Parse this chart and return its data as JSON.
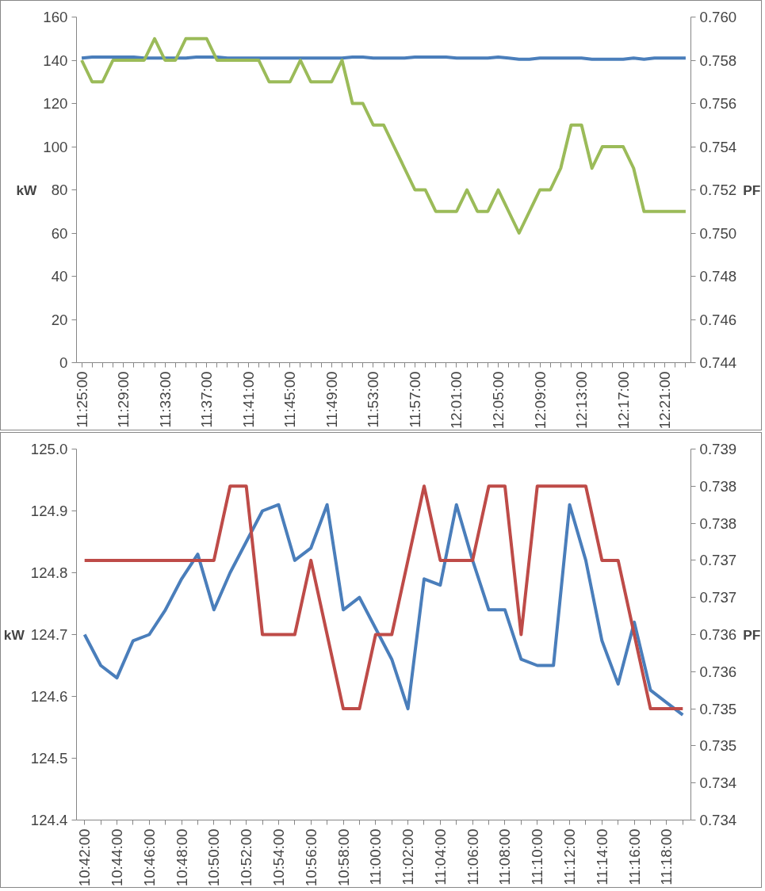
{
  "chart_data": [
    {
      "type": "line",
      "ylabel": "kW",
      "y2label": "PF",
      "categories": [
        "11:25:00",
        null,
        null,
        null,
        "11:29:00",
        null,
        null,
        null,
        "11:33:00",
        null,
        null,
        null,
        "11:37:00",
        null,
        null,
        null,
        "11:41:00",
        null,
        null,
        null,
        "11:45:00",
        null,
        null,
        null,
        "11:49:00",
        null,
        null,
        null,
        "11:53:00",
        null,
        null,
        null,
        "11:57:00",
        null,
        null,
        null,
        "12:01:00",
        null,
        null,
        null,
        "12:05:00",
        null,
        null,
        null,
        "12:09:00",
        null,
        null,
        null,
        "12:13:00",
        null,
        null,
        null,
        "12:17:00",
        null,
        null,
        null,
        "12:21:00",
        null,
        null
      ],
      "series": [
        {
          "color": "#4a7ebb",
          "values": [
            141,
            141.5,
            141.5,
            141.5,
            141.5,
            141.5,
            141,
            141,
            141,
            141,
            141,
            141.5,
            141.5,
            141.5,
            141,
            141,
            141,
            141,
            141,
            141,
            141,
            141,
            141,
            141,
            141,
            141,
            141.5,
            141.5,
            141,
            141,
            141,
            141,
            141.5,
            141.5,
            141.5,
            141.5,
            141,
            141,
            141,
            141,
            141.5,
            141,
            140.5,
            140.5,
            141,
            141,
            141,
            141,
            141,
            140.5,
            140.5,
            140.5,
            140.5,
            141,
            140.5,
            141,
            141,
            141,
            141
          ]
        },
        {
          "color": "#9bbb59",
          "axis": "y2",
          "values": [
            0.758,
            0.757,
            0.757,
            0.758,
            0.758,
            0.758,
            0.758,
            0.759,
            0.758,
            0.758,
            0.759,
            0.759,
            0.759,
            0.758,
            0.758,
            0.758,
            0.758,
            0.758,
            0.757,
            0.757,
            0.757,
            0.758,
            0.757,
            0.757,
            0.757,
            0.758,
            0.756,
            0.756,
            0.755,
            0.755,
            0.754,
            0.753,
            0.752,
            0.752,
            0.751,
            0.751,
            0.751,
            0.752,
            0.751,
            0.751,
            0.752,
            0.751,
            0.75,
            0.751,
            0.752,
            0.752,
            0.753,
            0.755,
            0.755,
            0.753,
            0.754,
            0.754,
            0.754,
            0.753,
            0.751,
            0.751,
            0.751,
            0.751,
            0.751
          ]
        }
      ],
      "ylim": [
        0,
        160
      ],
      "yticks": [
        0,
        20,
        40,
        60,
        80,
        100,
        120,
        140,
        160
      ],
      "y2lim": [
        0.744,
        0.76
      ],
      "y2ticks": [
        {
          "value": 0.744,
          "label": "0.744"
        },
        {
          "value": 0.746,
          "label": "0.746"
        },
        {
          "value": 0.748,
          "label": "0.748"
        },
        {
          "value": 0.75,
          "label": "0.750"
        },
        {
          "value": 0.752,
          "label": "0.752"
        },
        {
          "value": 0.754,
          "label": "0.754"
        },
        {
          "value": 0.756,
          "label": "0.756"
        },
        {
          "value": 0.758,
          "label": "0.758"
        },
        {
          "value": 0.76,
          "label": "0.760"
        }
      ]
    },
    {
      "type": "line",
      "ylabel": "kW",
      "y2label": "PF",
      "categories": [
        "10:42:00",
        null,
        "10:44:00",
        null,
        "10:46:00",
        null,
        "10:48:00",
        null,
        "10:50:00",
        null,
        "10:52:00",
        null,
        "10:54:00",
        null,
        "10:56:00",
        null,
        "10:58:00",
        null,
        "11:00:00",
        null,
        "11:02:00",
        null,
        "11:04:00",
        null,
        "11:06:00",
        null,
        "11:08:00",
        null,
        "11:10:00",
        null,
        "11:12:00",
        null,
        "11:14:00",
        null,
        "11:16:00",
        null,
        "11:18:00",
        null
      ],
      "series": [
        {
          "color": "#4a7ebb",
          "values": [
            124.7,
            124.65,
            124.63,
            124.69,
            124.7,
            124.74,
            124.79,
            124.83,
            124.74,
            124.8,
            124.85,
            124.9,
            124.91,
            124.82,
            124.84,
            124.91,
            124.74,
            124.76,
            124.71,
            124.66,
            124.58,
            124.79,
            124.78,
            124.91,
            124.82,
            124.74,
            124.74,
            124.66,
            124.65,
            124.65,
            124.91,
            124.82,
            124.69,
            124.62,
            124.72,
            124.61,
            124.59,
            124.57
          ]
        },
        {
          "color": "#be4b48",
          "axis": "y2",
          "values": [
            0.7375,
            0.7375,
            0.7375,
            0.7375,
            0.7375,
            0.7375,
            0.7375,
            0.7375,
            0.7375,
            0.7385,
            0.7385,
            0.7365,
            0.7365,
            0.7365,
            0.7375,
            0.7365,
            0.7355,
            0.7355,
            0.7365,
            0.7365,
            0.7375,
            0.7385,
            0.7375,
            0.7375,
            0.7375,
            0.7385,
            0.7385,
            0.7365,
            0.7385,
            0.7385,
            0.7385,
            0.7385,
            0.7375,
            0.7375,
            0.7365,
            0.7355,
            0.7355,
            0.7355
          ]
        }
      ],
      "ylim": [
        124.4,
        125.0
      ],
      "yticks": [
        {
          "value": 124.4,
          "label": "124.4"
        },
        {
          "value": 124.5,
          "label": "124.5"
        },
        {
          "value": 124.6,
          "label": "124.6"
        },
        {
          "value": 124.7,
          "label": "124.7"
        },
        {
          "value": 124.8,
          "label": "124.8"
        },
        {
          "value": 124.9,
          "label": "124.9"
        },
        {
          "value": 125.0,
          "label": "125.0"
        }
      ],
      "y2lim": [
        0.734,
        0.739
      ],
      "y2ticks": [
        {
          "value": 0.734,
          "label": "0.734"
        },
        {
          "value": 0.7345,
          "label": "0.734"
        },
        {
          "value": 0.735,
          "label": "0.735"
        },
        {
          "value": 0.7355,
          "label": "0.735"
        },
        {
          "value": 0.736,
          "label": "0.736"
        },
        {
          "value": 0.7365,
          "label": "0.736"
        },
        {
          "value": 0.737,
          "label": "0.737"
        },
        {
          "value": 0.7375,
          "label": "0.737"
        },
        {
          "value": 0.738,
          "label": "0.738"
        },
        {
          "value": 0.7385,
          "label": "0.738"
        },
        {
          "value": 0.739,
          "label": "0.739"
        }
      ]
    }
  ]
}
